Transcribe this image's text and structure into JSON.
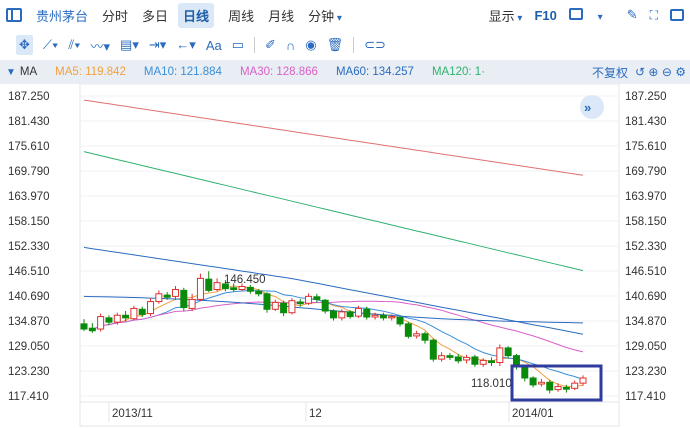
{
  "toolbar": {
    "stock_name": "贵州茅台",
    "tabs": [
      "分时",
      "多日",
      "日线",
      "周线",
      "月线",
      "分钟"
    ],
    "active_tab": "日线",
    "display_label": "显示",
    "f10_label": "F10"
  },
  "tools": {
    "text_tool_label": "Aa"
  },
  "ma_bar": {
    "label": "MA",
    "items": [
      {
        "label": "MA5: 119.842",
        "color": "#f0a040"
      },
      {
        "label": "MA10: 121.884",
        "color": "#3a8fd8"
      },
      {
        "label": "MA30: 128.866",
        "color": "#d860c8"
      },
      {
        "label": "MA60: 134.257",
        "color": "#2a6bbf"
      },
      {
        "label": "MA120: 1·",
        "color": "#30b070"
      }
    ],
    "adjust_label": "不复权"
  },
  "chart_data": {
    "type": "candlestick",
    "y_ticks": [
      "187.250",
      "181.430",
      "175.610",
      "169.790",
      "163.970",
      "158.150",
      "152.330",
      "146.510",
      "140.690",
      "134.870",
      "129.050",
      "123.230",
      "117.410"
    ],
    "ylim": [
      117.41,
      187.25
    ],
    "x_labels": [
      "2013/11",
      "12",
      "2014/01"
    ],
    "high_label": "146.450",
    "low_label": "118.010",
    "up_color": "#e03030",
    "down_color": "#0a8a0a",
    "candles": [
      [
        134.2,
        133.0,
        135.3,
        132.5
      ],
      [
        133.2,
        132.6,
        134.4,
        132.1
      ],
      [
        133.0,
        135.9,
        136.6,
        132.4
      ],
      [
        135.6,
        134.6,
        136.2,
        133.9
      ],
      [
        134.6,
        136.2,
        136.8,
        134.0
      ],
      [
        136.2,
        135.6,
        137.2,
        134.8
      ],
      [
        135.4,
        137.8,
        138.4,
        135.0
      ],
      [
        137.6,
        136.4,
        138.2,
        135.8
      ],
      [
        136.6,
        139.4,
        140.2,
        136.0
      ],
      [
        139.4,
        141.2,
        142.0,
        138.9
      ],
      [
        140.9,
        140.4,
        141.6,
        139.8
      ],
      [
        140.6,
        142.2,
        143.0,
        139.8
      ],
      [
        142.0,
        138.0,
        142.6,
        137.2
      ],
      [
        137.8,
        139.9,
        141.2,
        137.2
      ],
      [
        139.9,
        144.8,
        145.9,
        139.5
      ],
      [
        144.6,
        142.0,
        146.45,
        141.6
      ],
      [
        142.2,
        143.8,
        144.8,
        141.8
      ],
      [
        143.5,
        142.4,
        144.4,
        141.8
      ],
      [
        142.6,
        142.2,
        143.6,
        141.7
      ],
      [
        142.2,
        142.9,
        143.6,
        141.8
      ],
      [
        142.7,
        141.8,
        143.3,
        141.2
      ],
      [
        141.8,
        141.2,
        142.3,
        140.6
      ],
      [
        141.2,
        137.6,
        141.6,
        136.8
      ],
      [
        137.6,
        139.2,
        139.8,
        137.2
      ],
      [
        139.0,
        136.8,
        139.6,
        136.0
      ],
      [
        136.8,
        139.6,
        140.2,
        136.4
      ],
      [
        139.3,
        138.9,
        140.0,
        138.2
      ],
      [
        139.0,
        140.6,
        141.3,
        138.6
      ],
      [
        140.5,
        139.9,
        141.2,
        139.2
      ],
      [
        139.7,
        137.2,
        140.0,
        136.6
      ],
      [
        137.2,
        135.6,
        137.6,
        135.0
      ],
      [
        135.6,
        137.0,
        137.6,
        135.0
      ],
      [
        137.0,
        135.9,
        137.4,
        135.4
      ],
      [
        136.0,
        137.8,
        138.4,
        135.6
      ],
      [
        137.6,
        135.8,
        138.2,
        135.2
      ],
      [
        135.8,
        136.2,
        136.8,
        135.2
      ],
      [
        136.2,
        135.6,
        136.8,
        135.0
      ],
      [
        135.6,
        135.9,
        136.4,
        135.0
      ],
      [
        135.7,
        134.2,
        136.0,
        133.6
      ],
      [
        134.2,
        131.3,
        134.6,
        130.8
      ],
      [
        131.4,
        131.9,
        132.6,
        130.8
      ],
      [
        131.9,
        130.4,
        132.4,
        129.6
      ],
      [
        130.4,
        126.0,
        130.8,
        125.4
      ],
      [
        126.0,
        126.8,
        127.6,
        125.4
      ],
      [
        126.8,
        126.4,
        127.4,
        125.8
      ],
      [
        126.5,
        125.6,
        127.2,
        125.0
      ],
      [
        125.8,
        126.4,
        127.0,
        125.0
      ],
      [
        126.5,
        124.8,
        127.0,
        124.2
      ],
      [
        124.8,
        125.7,
        126.2,
        124.2
      ],
      [
        125.6,
        125.2,
        126.4,
        124.4
      ],
      [
        125.2,
        128.6,
        129.4,
        124.4
      ],
      [
        128.6,
        126.8,
        129.0,
        126.2
      ],
      [
        126.8,
        124.2,
        127.2,
        123.6
      ],
      [
        124.2,
        121.6,
        124.6,
        120.8
      ],
      [
        121.6,
        120.0,
        122.0,
        119.4
      ],
      [
        120.2,
        120.6,
        121.4,
        119.6
      ],
      [
        120.6,
        118.8,
        121.2,
        118.01
      ],
      [
        118.9,
        119.6,
        120.4,
        118.4
      ],
      [
        119.4,
        119.0,
        120.0,
        118.2
      ],
      [
        119.2,
        120.4,
        121.0,
        118.8
      ],
      [
        120.4,
        121.6,
        122.2,
        119.8
      ]
    ]
  }
}
